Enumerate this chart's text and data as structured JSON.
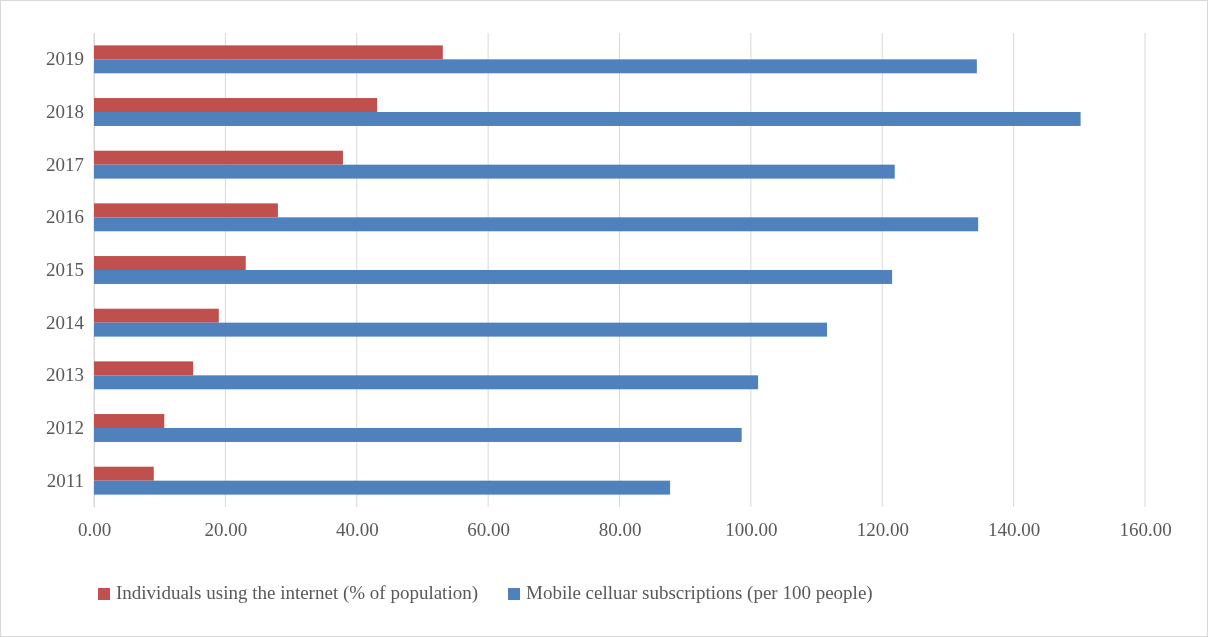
{
  "chart_data": {
    "type": "bar",
    "orientation": "horizontal",
    "categories": [
      "2019",
      "2018",
      "2017",
      "2016",
      "2015",
      "2014",
      "2013",
      "2012",
      "2011"
    ],
    "series": [
      {
        "name": "Individuals using the internet (% of population)",
        "color": "#c0504d",
        "values": [
          53.1,
          43.1,
          37.9,
          28.0,
          23.1,
          19.0,
          15.1,
          10.7,
          9.1
        ]
      },
      {
        "name": "Mobile celluar subscriptions (per 100 people)",
        "color": "#4f81bd",
        "values": [
          134.4,
          150.2,
          121.9,
          134.6,
          121.5,
          111.6,
          101.1,
          98.6,
          87.7
        ]
      }
    ],
    "xlim": [
      0,
      160
    ],
    "xticks": [
      {
        "value": 0,
        "label": "0.00"
      },
      {
        "value": 20,
        "label": "20.00"
      },
      {
        "value": 40,
        "label": "40.00"
      },
      {
        "value": 60,
        "label": "60.00"
      },
      {
        "value": 80,
        "label": "80.00"
      },
      {
        "value": 100,
        "label": "100.00"
      },
      {
        "value": 120,
        "label": "120.00"
      },
      {
        "value": 140,
        "label": "140.00"
      },
      {
        "value": 160,
        "label": "160.00"
      }
    ],
    "grid": "x",
    "legend": "bottom"
  }
}
